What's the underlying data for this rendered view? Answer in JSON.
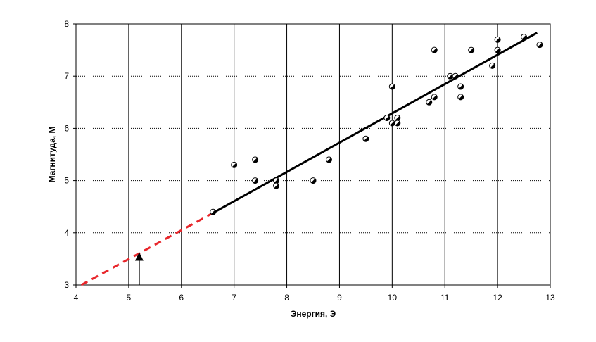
{
  "chart_data": {
    "type": "scatter",
    "title": "",
    "xlabel": "Энергия, Э",
    "ylabel": "Магнитуда, М",
    "xlim": [
      4,
      13
    ],
    "ylim": [
      3,
      8
    ],
    "x_ticks": [
      "4",
      "5",
      "6",
      "7",
      "8",
      "9",
      "10",
      "11",
      "12",
      "13"
    ],
    "y_ticks": [
      "3",
      "4",
      "5",
      "6",
      "7",
      "8"
    ],
    "grid": true,
    "colors": {
      "points": "#ffffff",
      "fit": "#000000",
      "extrapolation": "#e8262b",
      "grid": "#000000"
    },
    "points": [
      {
        "x": 6.6,
        "y": 4.4
      },
      {
        "x": 7.0,
        "y": 5.3
      },
      {
        "x": 7.4,
        "y": 5.4
      },
      {
        "x": 7.4,
        "y": 5.0
      },
      {
        "x": 7.8,
        "y": 5.0
      },
      {
        "x": 7.8,
        "y": 4.9
      },
      {
        "x": 8.5,
        "y": 5.0
      },
      {
        "x": 8.8,
        "y": 5.4
      },
      {
        "x": 9.5,
        "y": 5.8
      },
      {
        "x": 9.9,
        "y": 6.2
      },
      {
        "x": 10.0,
        "y": 6.1
      },
      {
        "x": 10.0,
        "y": 6.8
      },
      {
        "x": 10.1,
        "y": 6.2
      },
      {
        "x": 10.1,
        "y": 6.1
      },
      {
        "x": 10.7,
        "y": 6.5
      },
      {
        "x": 10.8,
        "y": 6.6
      },
      {
        "x": 10.8,
        "y": 7.5
      },
      {
        "x": 11.1,
        "y": 7.0
      },
      {
        "x": 11.2,
        "y": 7.0
      },
      {
        "x": 11.3,
        "y": 6.8
      },
      {
        "x": 11.3,
        "y": 6.6
      },
      {
        "x": 11.5,
        "y": 7.5
      },
      {
        "x": 11.9,
        "y": 7.2
      },
      {
        "x": 12.0,
        "y": 7.5
      },
      {
        "x": 12.0,
        "y": 7.7
      },
      {
        "x": 12.5,
        "y": 7.75
      },
      {
        "x": 12.8,
        "y": 7.6
      }
    ],
    "fit_line": {
      "x": [
        6.6,
        12.75
      ],
      "y": [
        4.38,
        7.83
      ]
    },
    "extrapolation_line": {
      "x": [
        4.1,
        6.6
      ],
      "y": [
        3.0,
        4.38
      ]
    },
    "arrow": {
      "x": 5.2,
      "y_from": 3.0,
      "y_to": 3.6
    }
  }
}
